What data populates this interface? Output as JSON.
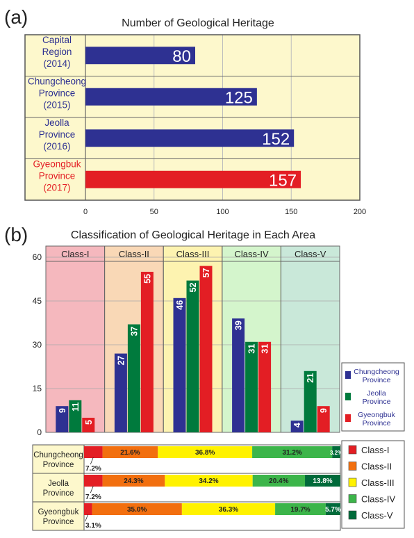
{
  "panel_a_label": "(a)",
  "panel_b_label": "(b)",
  "chart_data": [
    {
      "type": "bar",
      "orientation": "horizontal",
      "title": "Number of Geological Heritage",
      "categories": [
        [
          "Capital",
          "Region",
          "(2014)"
        ],
        [
          "Chungcheong",
          "Province",
          "(2015)"
        ],
        [
          "Jeolla",
          "Province",
          "(2016)"
        ],
        [
          "Gyeongbuk",
          "Province",
          "(2017)"
        ]
      ],
      "values": [
        80,
        125,
        152,
        157
      ],
      "bar_colors": [
        "#2e3192",
        "#2e3192",
        "#2e3192",
        "#e31e24"
      ],
      "label_colors": [
        "#2e3192",
        "#2e3192",
        "#2e3192",
        "#e31e24"
      ],
      "xlim": [
        0,
        200
      ],
      "xticks": [
        0,
        50,
        100,
        150,
        200
      ],
      "grid": true
    },
    {
      "type": "bar",
      "title": "Classification of Geological Heritage in Each Area",
      "categories": [
        "Class-I",
        "Class-II",
        "Class-III",
        "Class-IV",
        "Class-V"
      ],
      "category_backgrounds": [
        "#f5b8be",
        "#f9d8b6",
        "#fdf3b0",
        "#d4f5cc",
        "#c9e8d9"
      ],
      "series": [
        {
          "name": [
            "Chungcheong",
            "Province"
          ],
          "values": [
            9,
            27,
            46,
            39,
            4
          ],
          "color": "#2e3192"
        },
        {
          "name": [
            "Jeolla",
            "Province"
          ],
          "values": [
            11,
            37,
            52,
            31,
            21
          ],
          "color": "#007a3d"
        },
        {
          "name": [
            "Gyeongbuk",
            "Province"
          ],
          "values": [
            5,
            55,
            57,
            31,
            9
          ],
          "color": "#e31e24"
        }
      ],
      "ylim": [
        0,
        63
      ],
      "yticks": [
        0,
        15,
        30,
        45,
        60
      ],
      "legend": "right"
    },
    {
      "type": "bar",
      "stacked": true,
      "percent": true,
      "orientation": "horizontal",
      "rows": [
        {
          "label": [
            "Chungcheong",
            "Province"
          ],
          "values": [
            7.2,
            21.6,
            36.8,
            31.2,
            3.2
          ],
          "labels": [
            "7.2%",
            "21.6%",
            "36.8%",
            "31.2%",
            "3.2%"
          ]
        },
        {
          "label": [
            "Jeolla",
            "Province"
          ],
          "values": [
            7.2,
            24.3,
            34.2,
            20.4,
            13.8
          ],
          "labels": [
            "7.2%",
            "24.3%",
            "34.2%",
            "20.4%",
            "13.8%"
          ]
        },
        {
          "label": [
            "Gyeongbuk",
            "Province"
          ],
          "values": [
            3.1,
            35.0,
            36.3,
            19.7,
            5.7
          ],
          "labels": [
            "3.1%",
            "35.0%",
            "36.3%",
            "19.7%",
            "5.7%"
          ]
        }
      ],
      "segment_names": [
        "Class-I",
        "Class-II",
        "Class-III",
        "Class-IV",
        "Class-V"
      ],
      "segment_colors": [
        "#e31e24",
        "#f26f0f",
        "#fff200",
        "#3cb54a",
        "#006a3a"
      ],
      "legend": "right"
    }
  ]
}
